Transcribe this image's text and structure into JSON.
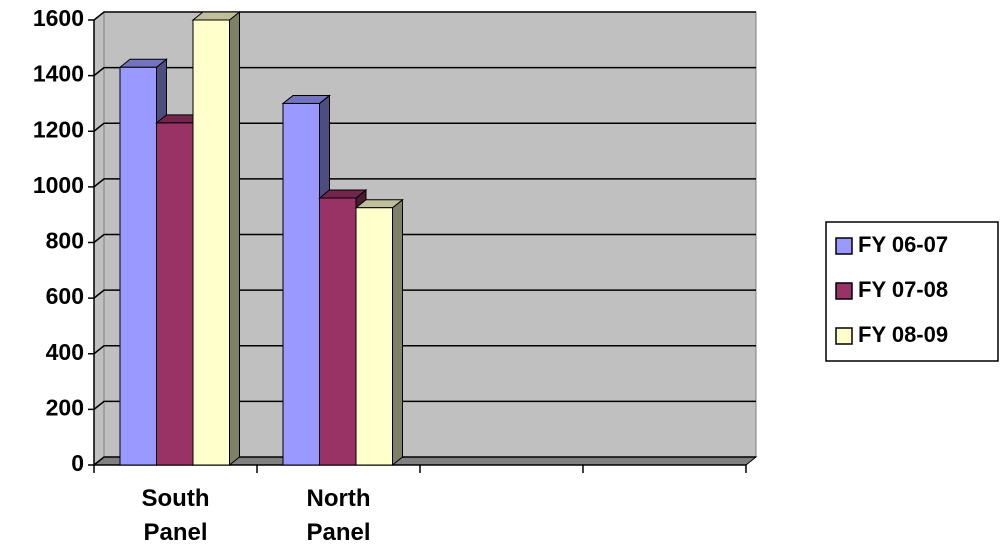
{
  "chart_data": {
    "type": "bar3d",
    "categories": [
      "South Panel",
      "North Panel",
      null,
      null
    ],
    "series": [
      {
        "name": "FY 06-07",
        "color": "#9999ff",
        "values": [
          1430,
          1300,
          null,
          null
        ]
      },
      {
        "name": "FY 07-08",
        "color": "#993366",
        "values": [
          1230,
          960,
          null,
          null
        ]
      },
      {
        "name": "FY 08-09",
        "color": "#ffffcc",
        "values": [
          1600,
          925,
          null,
          null
        ]
      }
    ],
    "ylim": [
      0,
      1600
    ],
    "yticks": [
      0,
      200,
      400,
      600,
      800,
      1000,
      1200,
      1400,
      1600
    ],
    "grid": true,
    "legend": "right"
  }
}
